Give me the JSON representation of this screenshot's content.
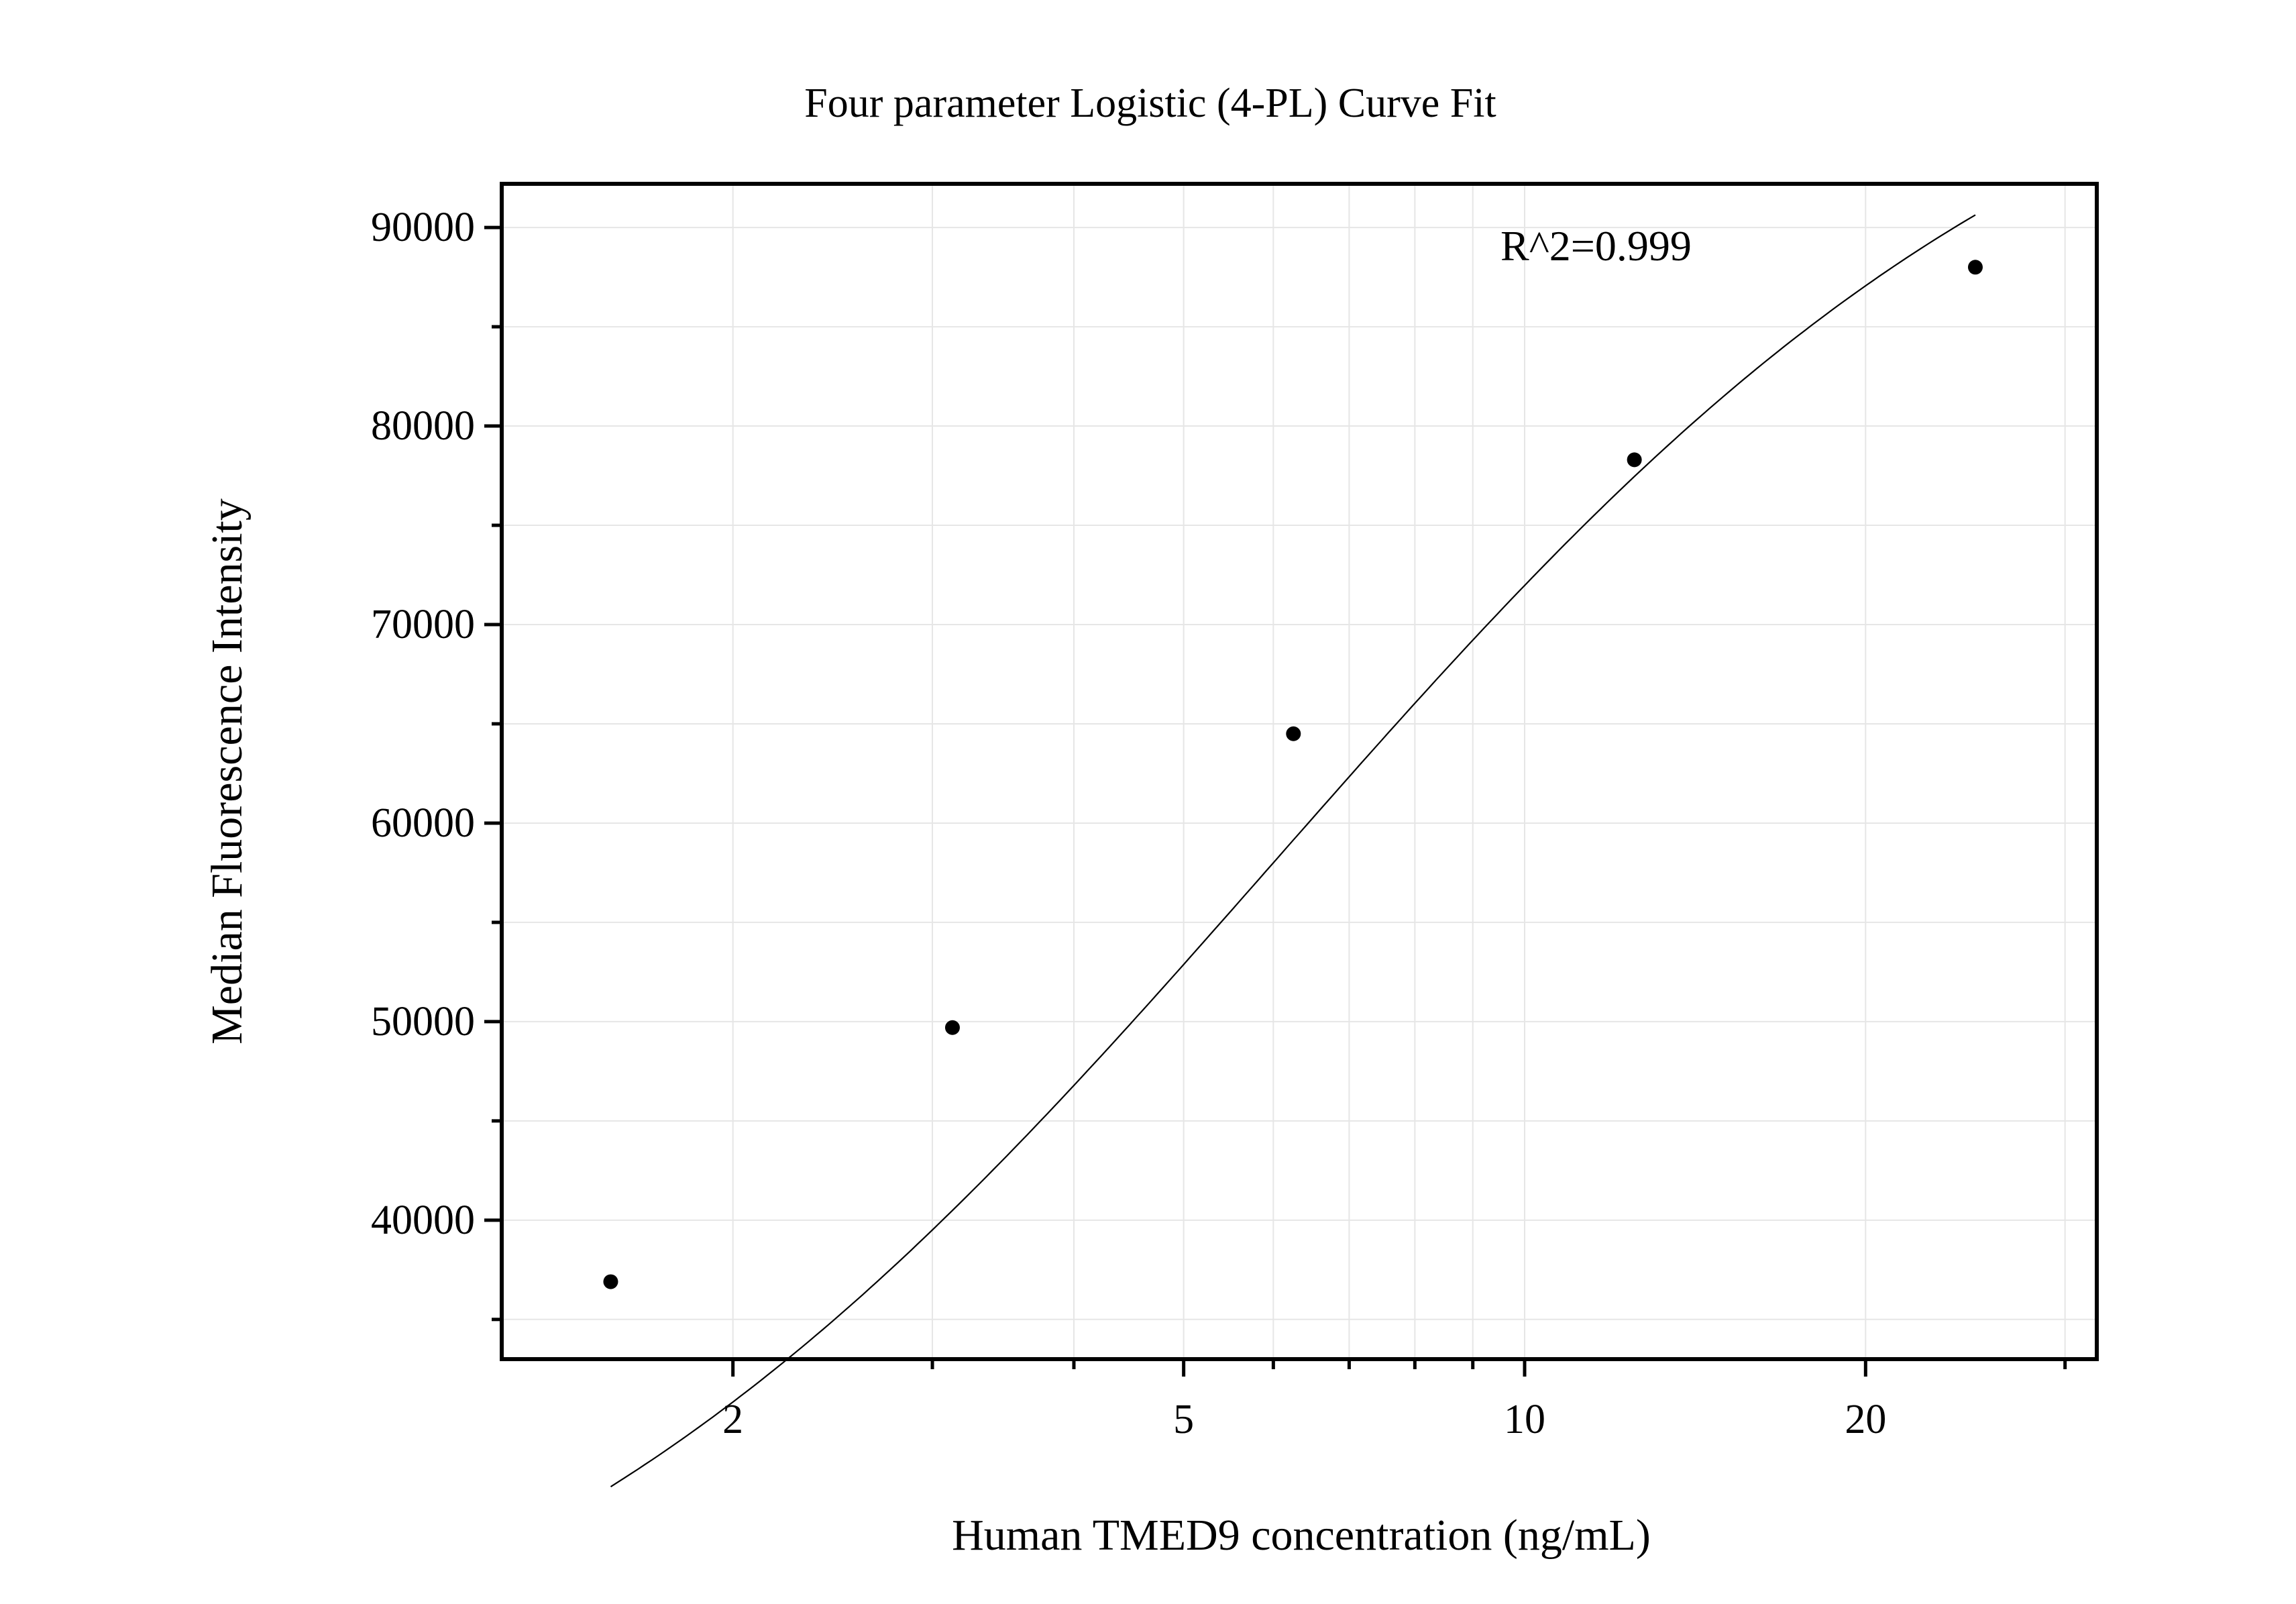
{
  "chart_data": {
    "type": "scatter",
    "title": "Four parameter Logistic (4-PL) Curve Fit",
    "xlabel": "Human TMED9 concentration (ng/mL)",
    "ylabel": "Median Fluorescence Intensity",
    "x_scale": "log",
    "xlim": [
      1.25,
      32
    ],
    "ylim": [
      33000,
      92200
    ],
    "x_ticks": [
      2,
      5,
      10,
      20
    ],
    "x_tick_labels": [
      "2",
      "5",
      "10",
      "20"
    ],
    "y_ticks": [
      40000,
      50000,
      60000,
      70000,
      80000,
      90000
    ],
    "y_tick_labels": [
      "40000",
      "50000",
      "60000",
      "70000",
      "80000",
      "90000"
    ],
    "grid": true,
    "annotation": "R^2=0.999",
    "series": [
      {
        "x": [
          1.56,
          3.125,
          6.25,
          12.5,
          25
        ],
        "y": [
          36900,
          49700,
          64500,
          78300,
          88000
        ]
      }
    ],
    "fit_curve": {
      "model": "4PL",
      "A": 11000,
      "D": 105000,
      "C": 6.0,
      "B": 1.2
    }
  }
}
